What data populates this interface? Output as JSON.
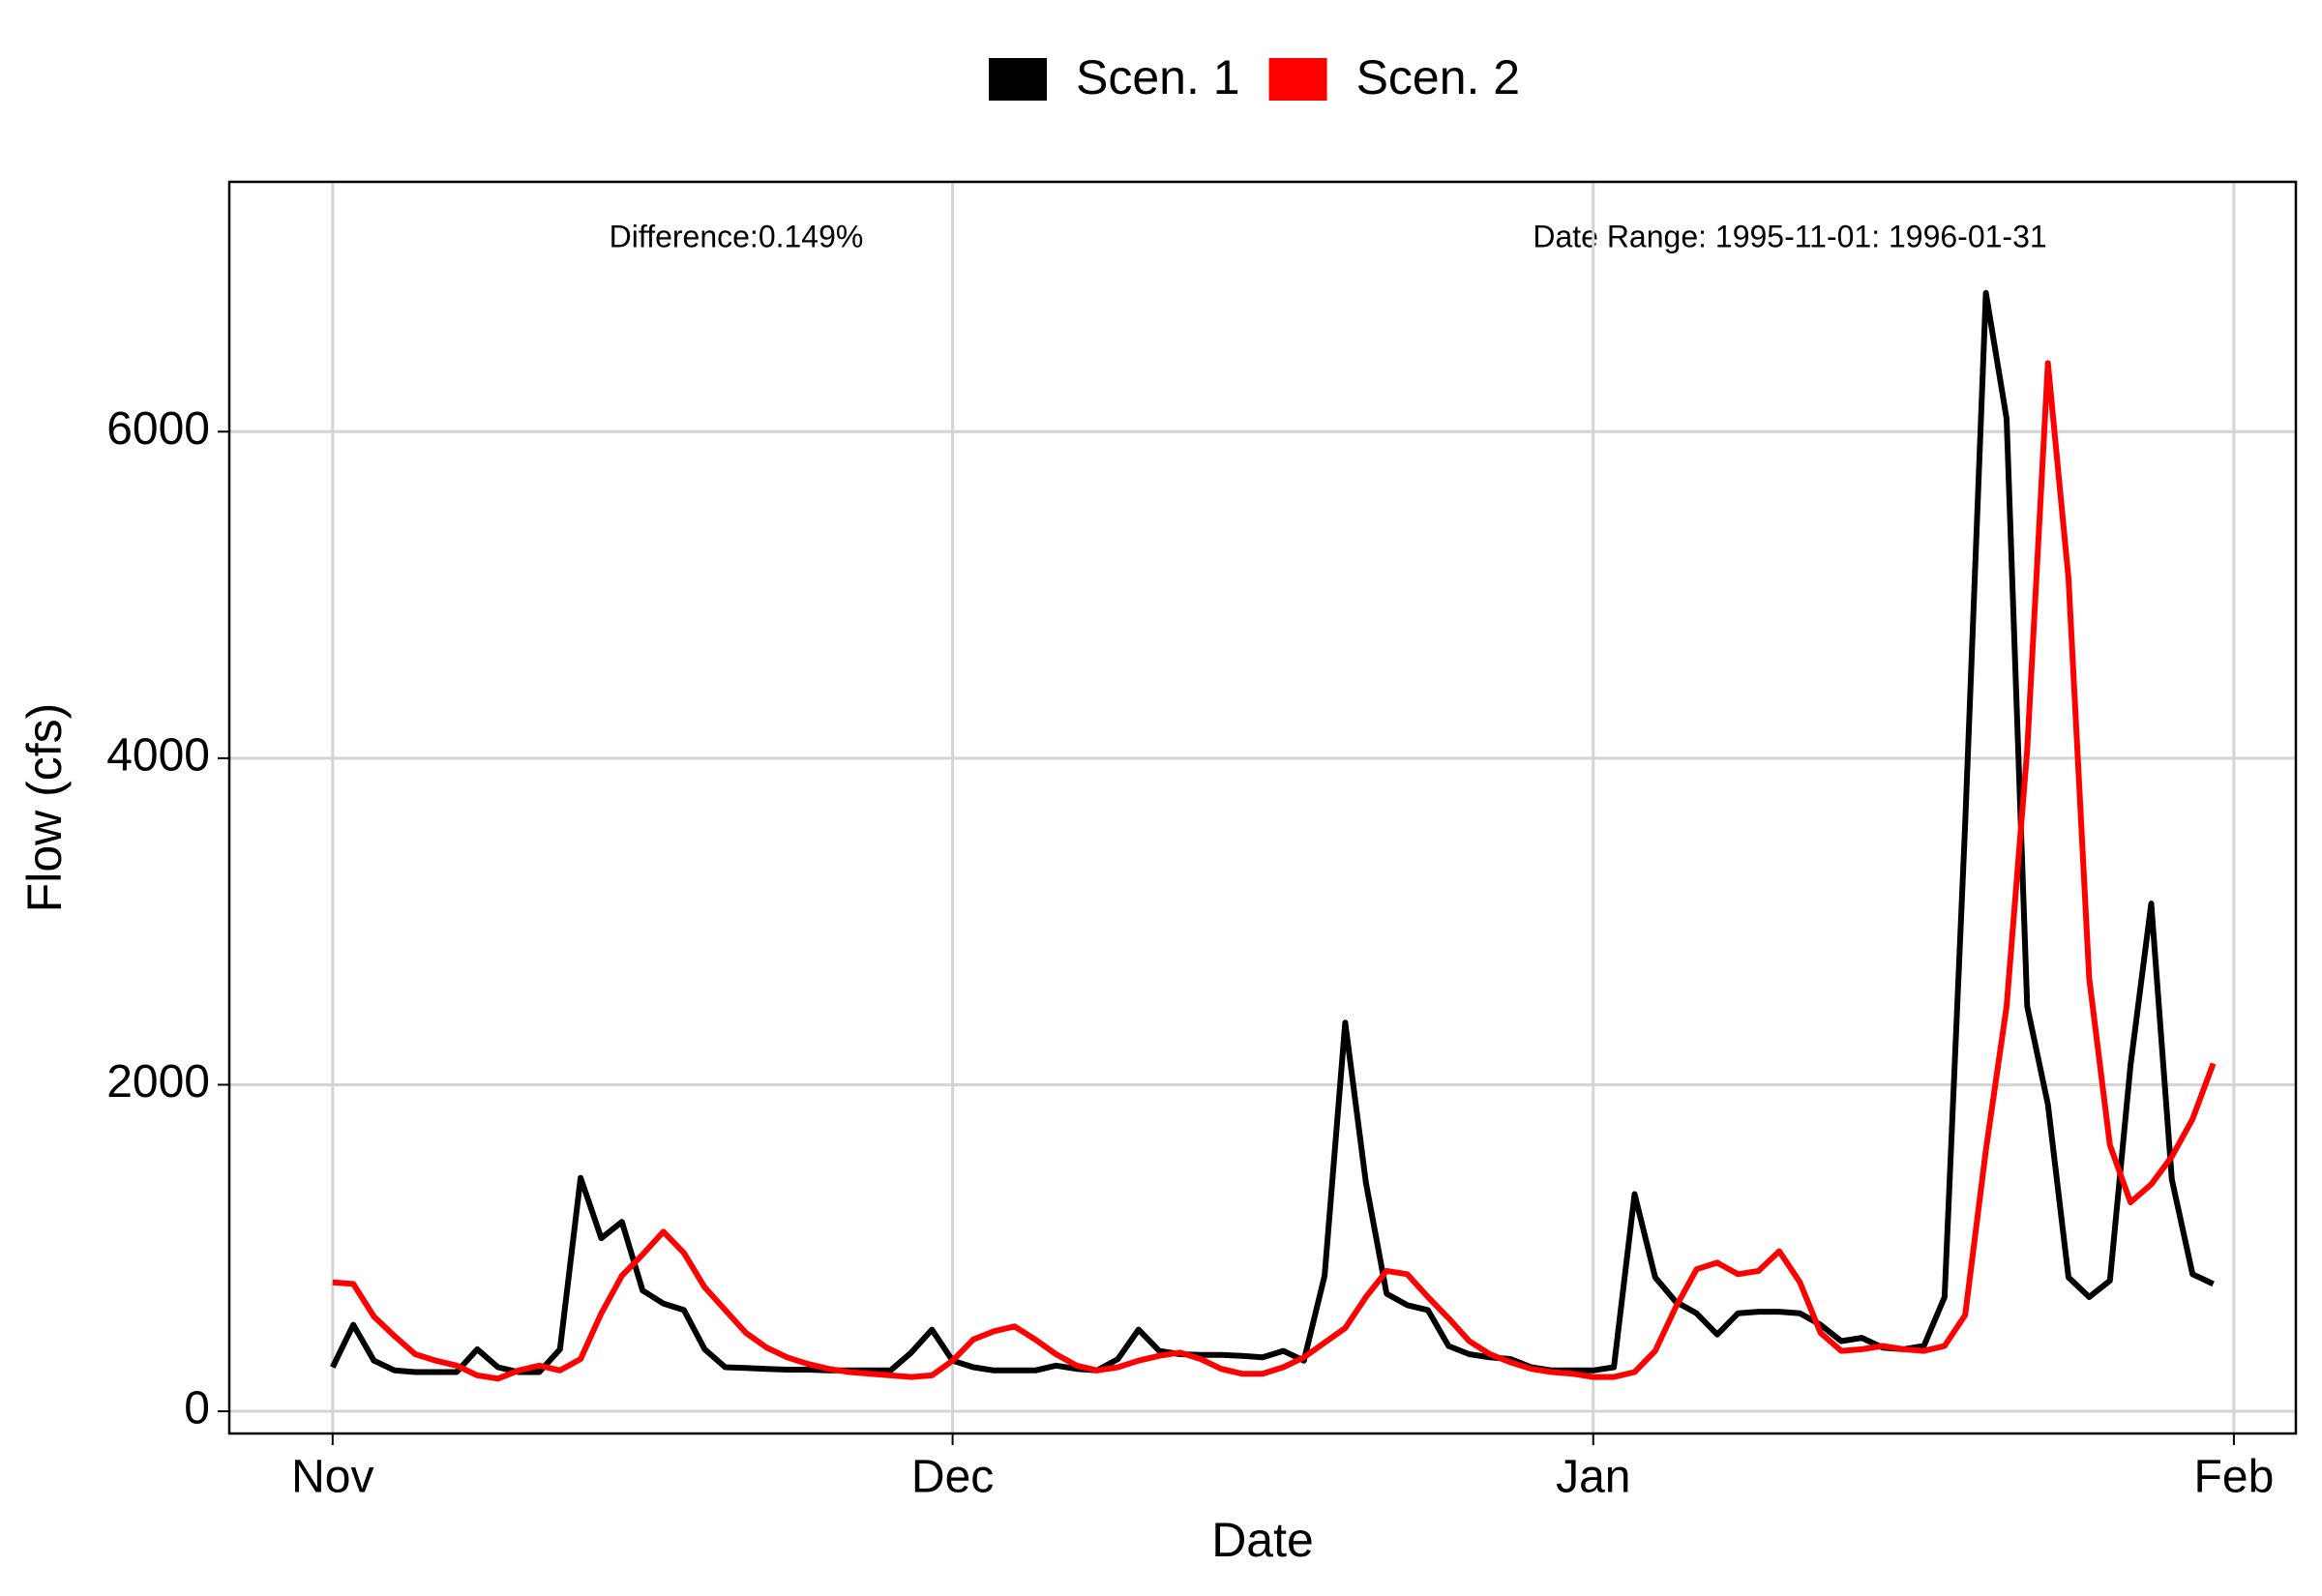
{
  "chart_data": {
    "type": "line",
    "xlabel": "Date",
    "ylabel": "Flow (cfs)",
    "annotations": [
      "Difference:0.149%",
      "Date Range: 1995-11-01: 1996-01-31"
    ],
    "x": [
      "1995-11-01",
      "1995-11-02",
      "1995-11-03",
      "1995-11-04",
      "1995-11-05",
      "1995-11-06",
      "1995-11-07",
      "1995-11-08",
      "1995-11-09",
      "1995-11-10",
      "1995-11-11",
      "1995-11-12",
      "1995-11-13",
      "1995-11-14",
      "1995-11-15",
      "1995-11-16",
      "1995-11-17",
      "1995-11-18",
      "1995-11-19",
      "1995-11-20",
      "1995-11-21",
      "1995-11-22",
      "1995-11-23",
      "1995-11-24",
      "1995-11-25",
      "1995-11-26",
      "1995-11-27",
      "1995-11-28",
      "1995-11-29",
      "1995-11-30",
      "1995-12-01",
      "1995-12-02",
      "1995-12-03",
      "1995-12-04",
      "1995-12-05",
      "1995-12-06",
      "1995-12-07",
      "1995-12-08",
      "1995-12-09",
      "1995-12-10",
      "1995-12-11",
      "1995-12-12",
      "1995-12-13",
      "1995-12-14",
      "1995-12-15",
      "1995-12-16",
      "1995-12-17",
      "1995-12-18",
      "1995-12-19",
      "1995-12-20",
      "1995-12-21",
      "1995-12-22",
      "1995-12-23",
      "1995-12-24",
      "1995-12-25",
      "1995-12-26",
      "1995-12-27",
      "1995-12-28",
      "1995-12-29",
      "1995-12-30",
      "1995-12-31",
      "1996-01-01",
      "1996-01-02",
      "1996-01-03",
      "1996-01-04",
      "1996-01-05",
      "1996-01-06",
      "1996-01-07",
      "1996-01-08",
      "1996-01-09",
      "1996-01-10",
      "1996-01-11",
      "1996-01-12",
      "1996-01-13",
      "1996-01-14",
      "1996-01-15",
      "1996-01-16",
      "1996-01-17",
      "1996-01-18",
      "1996-01-19",
      "1996-01-20",
      "1996-01-21",
      "1996-01-22",
      "1996-01-23",
      "1996-01-24",
      "1996-01-25",
      "1996-01-26",
      "1996-01-27",
      "1996-01-28",
      "1996-01-29",
      "1996-01-30",
      "1996-01-31"
    ],
    "series": [
      {
        "name": "Scen. 1",
        "color": "#000000",
        "values": [
          270,
          530,
          310,
          250,
          240,
          240,
          240,
          380,
          270,
          240,
          240,
          380,
          1430,
          1060,
          1160,
          740,
          660,
          620,
          380,
          270,
          265,
          260,
          255,
          255,
          250,
          250,
          250,
          250,
          360,
          500,
          310,
          270,
          250,
          250,
          250,
          280,
          260,
          250,
          320,
          500,
          370,
          350,
          345,
          345,
          340,
          330,
          370,
          310,
          830,
          2380,
          1400,
          720,
          650,
          620,
          400,
          350,
          330,
          320,
          270,
          250,
          250,
          250,
          270,
          1330,
          820,
          670,
          600,
          470,
          600,
          610,
          610,
          600,
          530,
          430,
          450,
          390,
          380,
          400,
          700,
          3600,
          6850,
          6080,
          2480,
          1880,
          820,
          700,
          800,
          2120,
          3110,
          1420,
          840,
          780
        ]
      },
      {
        "name": "Scen. 2",
        "color": "#ff0000",
        "values": [
          790,
          780,
          580,
          460,
          350,
          310,
          280,
          220,
          200,
          250,
          280,
          250,
          320,
          600,
          830,
          960,
          1100,
          970,
          760,
          620,
          480,
          390,
          330,
          290,
          260,
          240,
          230,
          220,
          210,
          220,
          310,
          440,
          490,
          520,
          440,
          350,
          280,
          250,
          270,
          310,
          340,
          360,
          320,
          260,
          230,
          230,
          270,
          330,
          420,
          510,
          700,
          860,
          840,
          700,
          570,
          430,
          350,
          300,
          260,
          240,
          230,
          210,
          210,
          240,
          370,
          640,
          870,
          910,
          840,
          860,
          980,
          790,
          480,
          370,
          380,
          400,
          380,
          370,
          400,
          590,
          1600,
          2480,
          4050,
          6420,
          5100,
          2650,
          1630,
          1280,
          1390,
          1560,
          1790,
          2130
        ]
      }
    ],
    "xlim": [
      "1995-10-27",
      "1996-02-04"
    ],
    "xticks": [
      {
        "value": "1995-11-01",
        "label": "Nov"
      },
      {
        "value": "1995-12-01",
        "label": "Dec"
      },
      {
        "value": "1996-01-01",
        "label": "Jan"
      },
      {
        "value": "1996-02-01",
        "label": "Feb"
      }
    ],
    "ylim": [
      -136,
      7530
    ],
    "yticks": [
      0,
      2000,
      4000,
      6000
    ],
    "grid": true,
    "legend": "top"
  }
}
